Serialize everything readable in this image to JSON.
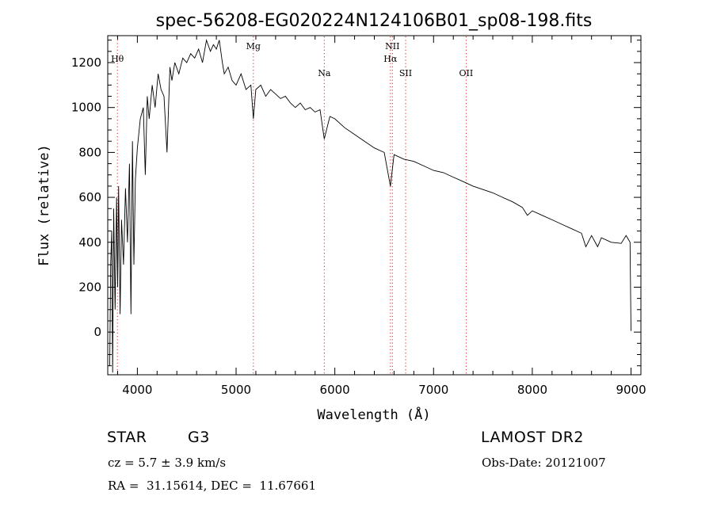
{
  "chart_data": {
    "type": "line",
    "title": "spec-56208-EG020224N124106B01_sp08-198.fits",
    "xlabel": "Wavelength (Å)",
    "ylabel": "Flux (relative)",
    "xlim": [
      3700,
      9100
    ],
    "ylim": [
      -190,
      1320
    ],
    "xticks": [
      4000,
      5000,
      6000,
      7000,
      8000,
      9000
    ],
    "yticks": [
      0,
      200,
      400,
      600,
      800,
      1000,
      1200
    ],
    "grid": false,
    "series": [
      {
        "x": [
          3720,
          3730,
          3740,
          3750,
          3760,
          3775,
          3790,
          3800,
          3810,
          3825,
          3840,
          3860,
          3880,
          3900,
          3920,
          3935,
          3950,
          3965,
          3980,
          4000,
          4030,
          4060,
          4080,
          4100,
          4120,
          4150,
          4180,
          4210,
          4240,
          4270,
          4300,
          4330,
          4350,
          4380,
          4420,
          4460,
          4500,
          4540,
          4580,
          4620,
          4660,
          4700,
          4740,
          4770,
          4800,
          4830,
          4861,
          4880,
          4920,
          4960,
          5000,
          5050,
          5100,
          5150,
          5175,
          5200,
          5250,
          5300,
          5350,
          5400,
          5450,
          5500,
          5550,
          5600,
          5650,
          5700,
          5750,
          5800,
          5850,
          5893,
          5950,
          6000,
          6100,
          6200,
          6300,
          6400,
          6500,
          6563,
          6600,
          6700,
          6800,
          6900,
          7000,
          7100,
          7200,
          7300,
          7400,
          7500,
          7600,
          7700,
          7800,
          7900,
          7950,
          8000,
          8100,
          8200,
          8300,
          8400,
          8498,
          8542,
          8600,
          8662,
          8700,
          8800,
          8900,
          8950,
          8990,
          9000
        ],
        "values": [
          -150,
          300,
          450,
          -180,
          550,
          100,
          600,
          200,
          650,
          80,
          500,
          300,
          640,
          400,
          750,
          80,
          850,
          300,
          680,
          820,
          950,
          1000,
          700,
          1050,
          950,
          1100,
          1000,
          1150,
          1080,
          1050,
          800,
          1180,
          1120,
          1200,
          1150,
          1220,
          1200,
          1240,
          1220,
          1260,
          1200,
          1300,
          1250,
          1280,
          1260,
          1300,
          1200,
          1150,
          1180,
          1120,
          1100,
          1150,
          1080,
          1100,
          950,
          1080,
          1100,
          1050,
          1080,
          1060,
          1040,
          1050,
          1020,
          1000,
          1020,
          990,
          1000,
          980,
          990,
          860,
          960,
          950,
          910,
          880,
          850,
          820,
          800,
          650,
          790,
          770,
          760,
          740,
          720,
          710,
          690,
          670,
          650,
          635,
          620,
          600,
          580,
          555,
          520,
          540,
          520,
          500,
          480,
          460,
          440,
          380,
          430,
          380,
          420,
          400,
          395,
          430,
          400,
          5
        ]
      }
    ],
    "annotations": [
      {
        "label": "Hθ",
        "x": 3798
      },
      {
        "label": "Mg",
        "x": 5175
      },
      {
        "label": "Na",
        "x": 5893
      },
      {
        "label": "NII",
        "x": 6583
      },
      {
        "label": "Hα",
        "x": 6563
      },
      {
        "label": "SII",
        "x": 6717
      },
      {
        "label": "OII",
        "x": 7330
      }
    ]
  },
  "info": {
    "object_class": "STAR",
    "subclass": "G3",
    "redshift_line": "cz = 5.7 ± 3.9 km/s",
    "coords_line": "RA =  31.15614, DEC =  11.67661",
    "survey": "LAMOST DR2",
    "obs_date_line": "Obs-Date: 20121007"
  }
}
